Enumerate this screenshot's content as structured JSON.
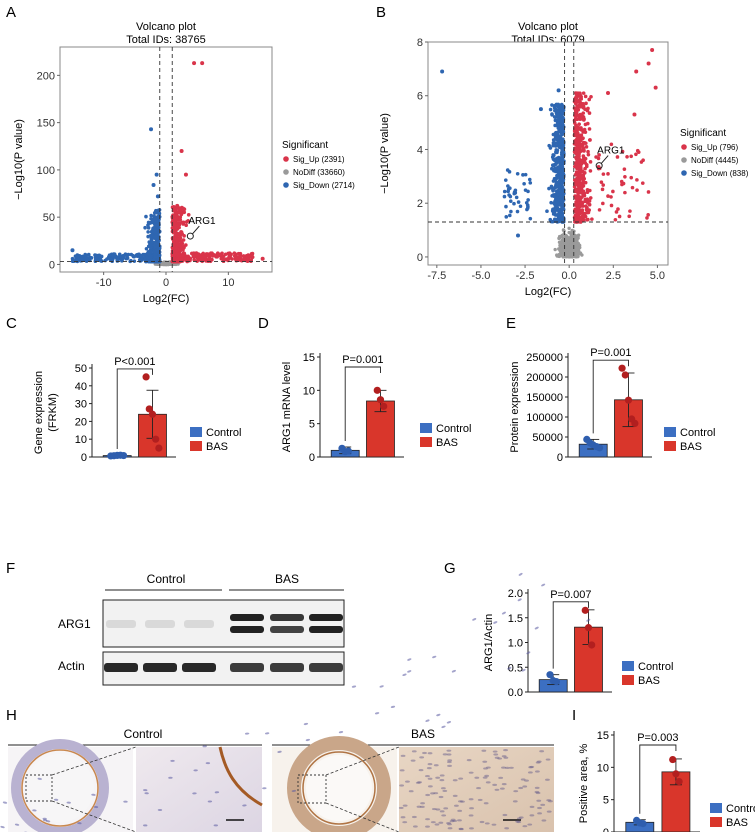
{
  "figure": {
    "panel_labels": [
      "A",
      "B",
      "C",
      "D",
      "E",
      "F",
      "G",
      "H",
      "I"
    ]
  },
  "colors": {
    "up": "#d9344a",
    "down": "#2e66b1",
    "nodiff": "#9a9a9a",
    "control": "#3c6fc2",
    "bas": "#d9362b",
    "bas_dot": "#b21f1f",
    "control_dot": "#2f5eae"
  },
  "chart_data": [
    {
      "id": "A",
      "type": "scatter",
      "title": "Volcano plot",
      "subtitle": "Total IDs: 38765",
      "xlabel": "Log2(FC)",
      "ylabel": "−Log10(P value)",
      "xlim": [
        -17,
        17
      ],
      "ylim": [
        -8,
        230
      ],
      "xticks": [
        -10,
        0,
        10
      ],
      "yticks": [
        0,
        50,
        100,
        150,
        200
      ],
      "thresholds": {
        "x": [
          -1,
          1
        ],
        "y": 3
      },
      "legend_title": "Significant",
      "legend": [
        {
          "label": "Sig_Up",
          "count": "(2391)",
          "color": "#d9344a"
        },
        {
          "label": "NoDiff",
          "count": "(33660)",
          "color": "#9a9a9a"
        },
        {
          "label": "Sig_Down",
          "count": "(2714)",
          "color": "#2e66b1"
        }
      ],
      "annotation": {
        "label": "ARG1",
        "x": 3.9,
        "y": 30
      },
      "highlight_points": [
        {
          "x": 4.5,
          "y": 213,
          "group": "up"
        },
        {
          "x": 5.8,
          "y": 213,
          "group": "up"
        },
        {
          "x": 2.5,
          "y": 120,
          "group": "up"
        },
        {
          "x": 3.2,
          "y": 95,
          "group": "up"
        },
        {
          "x": -2.4,
          "y": 143,
          "group": "down"
        },
        {
          "x": -1.5,
          "y": 95,
          "group": "down"
        },
        {
          "x": -2.0,
          "y": 84,
          "group": "down"
        },
        {
          "x": -1.3,
          "y": 72,
          "group": "down"
        },
        {
          "x": -15.0,
          "y": 15,
          "group": "down"
        },
        {
          "x": -13.5,
          "y": 8,
          "group": "down"
        },
        {
          "x": 15.5,
          "y": 6,
          "group": "up"
        },
        {
          "x": 1.8,
          "y": 62,
          "group": "up"
        }
      ]
    },
    {
      "id": "B",
      "type": "scatter",
      "title": "Volcano plot",
      "subtitle": "Total IDs: 6079",
      "xlabel": "Log2(FC)",
      "ylabel": "−Log10(P value)",
      "xlim": [
        -8,
        5.6
      ],
      "ylim": [
        -0.3,
        8
      ],
      "xticks": [
        -7.5,
        -5.0,
        -2.5,
        0.0,
        2.5,
        5.0
      ],
      "yticks": [
        0,
        2,
        4,
        6,
        8
      ],
      "thresholds": {
        "x": [
          -0.26,
          0.26
        ],
        "y": 1.3
      },
      "legend_title": "Significant",
      "legend": [
        {
          "label": "Sig_Up",
          "count": "(796)",
          "color": "#d9344a"
        },
        {
          "label": "NoDiff",
          "count": "(4445)",
          "color": "#9a9a9a"
        },
        {
          "label": "Sig_Down",
          "count": "(838)",
          "color": "#2e66b1"
        }
      ],
      "annotation": {
        "label": "ARG1",
        "x": 1.7,
        "y": 3.4
      },
      "highlight_points": [
        {
          "x": -7.2,
          "y": 6.9,
          "group": "down"
        },
        {
          "x": 4.7,
          "y": 7.7,
          "group": "up"
        },
        {
          "x": 4.5,
          "y": 7.2,
          "group": "up"
        },
        {
          "x": 3.8,
          "y": 6.9,
          "group": "up"
        },
        {
          "x": 4.9,
          "y": 6.3,
          "group": "up"
        },
        {
          "x": -1.6,
          "y": 5.5,
          "group": "down"
        },
        {
          "x": -0.6,
          "y": 6.2,
          "group": "down"
        },
        {
          "x": -2.9,
          "y": 0.8,
          "group": "down"
        },
        {
          "x": 2.2,
          "y": 6.1,
          "group": "up"
        },
        {
          "x": 3.7,
          "y": 5.3,
          "group": "up"
        }
      ]
    },
    {
      "id": "C",
      "type": "bar",
      "ylabel": "Gene expression\n(FRKM)",
      "ylim": [
        0,
        50
      ],
      "yticks": [
        0,
        10,
        20,
        30,
        40,
        50
      ],
      "categories": [
        "Control",
        "BAS"
      ],
      "values": [
        0.8,
        24
      ],
      "errors": [
        0.3,
        13.5
      ],
      "points": [
        [
          0.6,
          0.7,
          0.9,
          1.0,
          0.8
        ],
        [
          45,
          27,
          24,
          10,
          5
        ]
      ],
      "pvalue": "P<0.001",
      "legend": [
        "Control",
        "BAS"
      ]
    },
    {
      "id": "D",
      "type": "bar",
      "ylabel": "ARG1 mRNA level",
      "ylim": [
        0,
        15
      ],
      "yticks": [
        0,
        5,
        10,
        15
      ],
      "categories": [
        "Control",
        "BAS"
      ],
      "values": [
        1.0,
        8.4
      ],
      "errors": [
        0.5,
        1.6
      ],
      "points": [
        [
          1.3,
          0.8,
          0.9
        ],
        [
          10.0,
          8.6,
          7.6
        ]
      ],
      "pvalue": "P=0.001",
      "legend": [
        "Control",
        "BAS"
      ]
    },
    {
      "id": "E",
      "type": "bar",
      "ylabel": "Protein expression",
      "ylim": [
        0,
        250000
      ],
      "yticks": [
        0,
        50000,
        100000,
        150000,
        200000,
        250000
      ],
      "categories": [
        "Control",
        "BAS"
      ],
      "values": [
        32000,
        143000
      ],
      "errors": [
        12000,
        67000
      ],
      "points": [
        [
          44000,
          35000,
          30000,
          26000,
          23000
        ],
        [
          222000,
          205000,
          142000,
          95000,
          84000
        ]
      ],
      "pvalue": "P=0.001",
      "legend": [
        "Control",
        "BAS"
      ]
    },
    {
      "id": "G",
      "type": "bar",
      "ylabel": "ARG1/Actin",
      "ylim": [
        0,
        2.0
      ],
      "yticks": [
        0.0,
        0.5,
        1.0,
        1.5,
        2.0
      ],
      "categories": [
        "Control",
        "BAS"
      ],
      "values": [
        0.25,
        1.31
      ],
      "errors": [
        0.1,
        0.35
      ],
      "points": [
        [
          0.35,
          0.23,
          0.21
        ],
        [
          1.65,
          1.3,
          0.95
        ]
      ],
      "pvalue": "P=0.007",
      "legend": [
        "Control",
        "BAS"
      ]
    },
    {
      "id": "I",
      "type": "bar",
      "ylabel": "Positive area, %",
      "ylim": [
        0,
        15
      ],
      "yticks": [
        0,
        5,
        10,
        15
      ],
      "categories": [
        "Control",
        "BAS"
      ],
      "values": [
        1.5,
        9.3
      ],
      "errors": [
        0.4,
        2.0
      ],
      "points": [
        [
          1.8,
          1.4,
          1.3
        ],
        [
          11.2,
          9.0,
          7.8
        ]
      ],
      "pvalue": "P=0.003",
      "legend": [
        "Control",
        "BAS"
      ]
    }
  ],
  "western": {
    "group_labels": [
      "Control",
      "BAS"
    ],
    "row_labels": [
      "ARG1",
      "Actin"
    ]
  },
  "histology": {
    "group_labels": [
      "Control",
      "BAS"
    ]
  }
}
